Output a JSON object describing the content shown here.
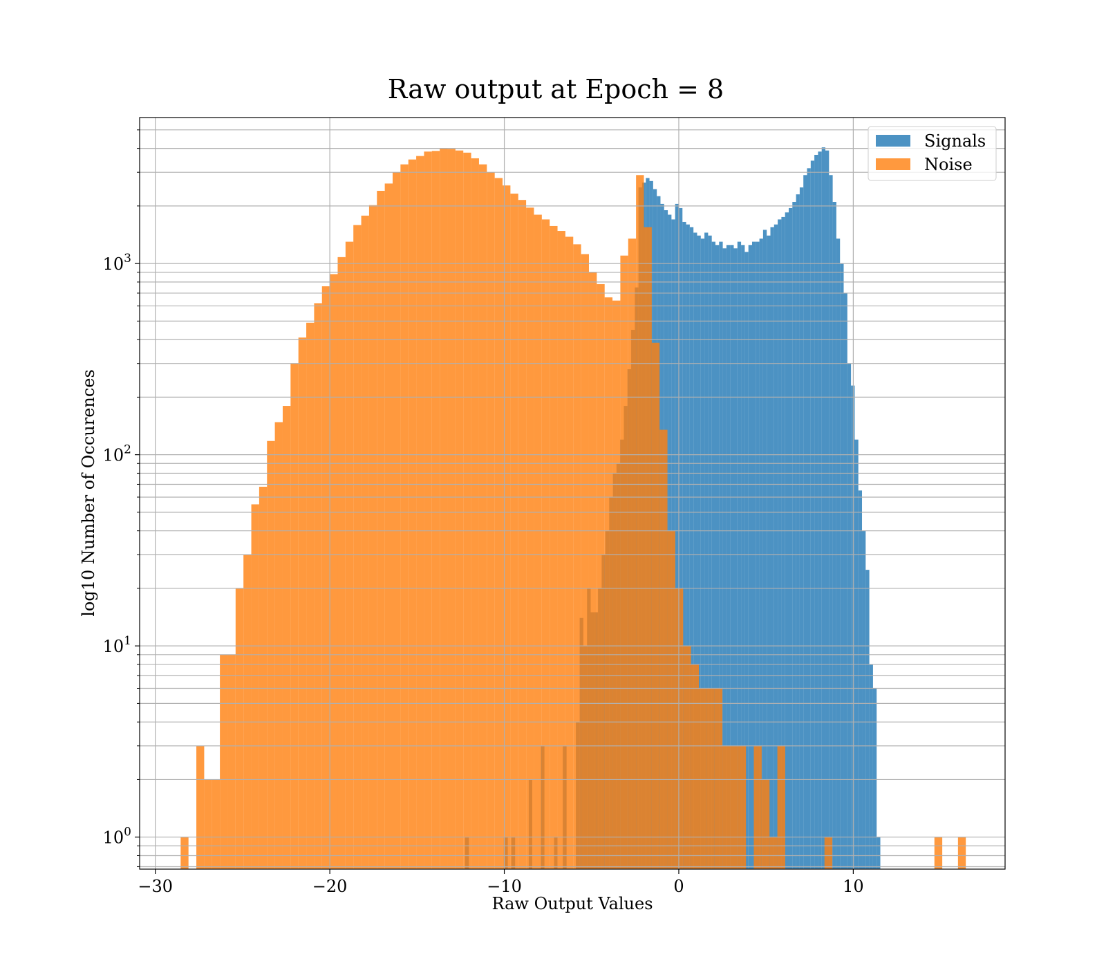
{
  "chart_data": {
    "type": "histogram",
    "title": "Raw output at Epoch = 8",
    "xlabel": "Raw Output Values",
    "ylabel": "log10 Number of Occurences",
    "yscale": "log",
    "xlim": [
      -30.9,
      18.7
    ],
    "ylim": [
      0.68,
      5800
    ],
    "xticks": [
      {
        "value": -30,
        "label": "−30"
      },
      {
        "value": -20,
        "label": "−20"
      },
      {
        "value": -10,
        "label": "−10"
      },
      {
        "value": 0,
        "label": "0"
      },
      {
        "value": 10,
        "label": "10"
      }
    ],
    "yticks": [
      {
        "value": 1,
        "base": "10",
        "exp": "0"
      },
      {
        "value": 10,
        "base": "10",
        "exp": "1"
      },
      {
        "value": 100,
        "base": "10",
        "exp": "2"
      },
      {
        "value": 1000,
        "base": "10",
        "exp": "3"
      }
    ],
    "grid": true,
    "legend": "top-right",
    "series": [
      {
        "name": "Signals",
        "color": "#1f77b4",
        "alpha": 0.8,
        "bins": [
          [
            -12.25,
            -12.03,
            1
          ],
          [
            -10.03,
            -9.8,
            1
          ],
          [
            -9.6,
            -9.38,
            1
          ],
          [
            -8.6,
            -8.4,
            2
          ],
          [
            -7.9,
            -7.7,
            3
          ],
          [
            -7.15,
            -6.95,
            1
          ],
          [
            -6.65,
            -6.43,
            3
          ],
          [
            -5.9,
            -5.68,
            4
          ],
          [
            -5.68,
            -5.47,
            14
          ],
          [
            -5.47,
            -5.26,
            10
          ],
          [
            -5.26,
            -5.05,
            20
          ],
          [
            -5.05,
            -4.84,
            15
          ],
          [
            -4.84,
            -4.63,
            15
          ],
          [
            -4.63,
            -4.42,
            20
          ],
          [
            -4.42,
            -4.21,
            30
          ],
          [
            -4.21,
            -3.99,
            40
          ],
          [
            -3.99,
            -3.78,
            60
          ],
          [
            -3.78,
            -3.57,
            80
          ],
          [
            -3.57,
            -3.36,
            90
          ],
          [
            -3.36,
            -3.15,
            120
          ],
          [
            -3.15,
            -2.94,
            180
          ],
          [
            -2.94,
            -2.73,
            280
          ],
          [
            -2.73,
            -2.52,
            450
          ],
          [
            -2.52,
            -2.31,
            750
          ],
          [
            -2.31,
            -2.1,
            2500
          ],
          [
            -2.1,
            -1.89,
            2650
          ],
          [
            -1.89,
            -1.68,
            2800
          ],
          [
            -1.68,
            -1.47,
            2700
          ],
          [
            -1.47,
            -1.26,
            2450
          ],
          [
            -1.26,
            -1.05,
            2250
          ],
          [
            -1.05,
            -0.84,
            2050
          ],
          [
            -0.84,
            -0.63,
            1900
          ],
          [
            -0.63,
            -0.42,
            1800
          ],
          [
            -0.42,
            -0.21,
            1700
          ],
          [
            -0.21,
            0.0,
            2050
          ],
          [
            0.0,
            0.21,
            1950
          ],
          [
            0.21,
            0.42,
            1650
          ],
          [
            0.42,
            0.63,
            1600
          ],
          [
            0.63,
            0.84,
            1550
          ],
          [
            0.84,
            1.05,
            1450
          ],
          [
            1.05,
            1.26,
            1400
          ],
          [
            1.26,
            1.47,
            1350
          ],
          [
            1.47,
            1.68,
            1450
          ],
          [
            1.68,
            1.89,
            1400
          ],
          [
            1.89,
            2.1,
            1300
          ],
          [
            2.1,
            2.31,
            1250
          ],
          [
            2.31,
            2.52,
            1300
          ],
          [
            2.52,
            2.73,
            1200
          ],
          [
            2.73,
            2.94,
            1250
          ],
          [
            2.94,
            3.15,
            1250
          ],
          [
            3.15,
            3.36,
            1200
          ],
          [
            3.36,
            3.57,
            1300
          ],
          [
            3.57,
            3.78,
            1250
          ],
          [
            3.78,
            3.99,
            1150
          ],
          [
            3.99,
            4.2,
            1250
          ],
          [
            4.2,
            4.41,
            1300
          ],
          [
            4.41,
            4.62,
            1300
          ],
          [
            4.62,
            4.83,
            1350
          ],
          [
            4.83,
            5.04,
            1500
          ],
          [
            5.04,
            5.25,
            1400
          ],
          [
            5.25,
            5.46,
            1550
          ],
          [
            5.46,
            5.67,
            1600
          ],
          [
            5.67,
            5.88,
            1700
          ],
          [
            5.88,
            6.09,
            1750
          ],
          [
            6.09,
            6.3,
            1850
          ],
          [
            6.3,
            6.51,
            1950
          ],
          [
            6.51,
            6.72,
            2100
          ],
          [
            6.72,
            6.93,
            2300
          ],
          [
            6.93,
            7.14,
            2500
          ],
          [
            7.14,
            7.35,
            2900
          ],
          [
            7.35,
            7.56,
            3150
          ],
          [
            7.56,
            7.77,
            3450
          ],
          [
            7.77,
            7.98,
            3700
          ],
          [
            7.98,
            8.19,
            3850
          ],
          [
            8.19,
            8.4,
            4050
          ],
          [
            8.4,
            8.61,
            3900
          ],
          [
            8.61,
            8.82,
            2900
          ],
          [
            8.82,
            9.03,
            2100
          ],
          [
            9.03,
            9.24,
            1350
          ],
          [
            9.24,
            9.45,
            1000
          ],
          [
            9.45,
            9.66,
            700
          ],
          [
            9.66,
            9.87,
            300
          ],
          [
            9.87,
            10.08,
            230
          ],
          [
            10.08,
            10.29,
            120
          ],
          [
            10.29,
            10.5,
            65
          ],
          [
            10.5,
            10.71,
            40
          ],
          [
            10.71,
            10.92,
            25
          ],
          [
            10.92,
            11.13,
            8
          ],
          [
            11.13,
            11.34,
            6
          ],
          [
            11.34,
            11.55,
            1
          ]
        ]
      },
      {
        "name": "Noise",
        "color": "#ff7f0e",
        "alpha": 0.8,
        "bins": [
          [
            -28.55,
            -28.1,
            1
          ],
          [
            -27.65,
            -27.2,
            3
          ],
          [
            -27.2,
            -26.75,
            2
          ],
          [
            -26.75,
            -26.3,
            2
          ],
          [
            -26.3,
            -25.85,
            9
          ],
          [
            -25.85,
            -25.4,
            9
          ],
          [
            -25.4,
            -24.95,
            20
          ],
          [
            -24.95,
            -24.5,
            30
          ],
          [
            -24.5,
            -24.05,
            55
          ],
          [
            -24.05,
            -23.6,
            68
          ],
          [
            -23.6,
            -23.15,
            118
          ],
          [
            -23.15,
            -22.7,
            148
          ],
          [
            -22.7,
            -22.25,
            180
          ],
          [
            -22.25,
            -21.8,
            300
          ],
          [
            -21.8,
            -21.35,
            410
          ],
          [
            -21.35,
            -20.9,
            490
          ],
          [
            -20.9,
            -20.45,
            620
          ],
          [
            -20.45,
            -20.0,
            760
          ],
          [
            -20.0,
            -19.55,
            880
          ],
          [
            -19.55,
            -19.1,
            1080
          ],
          [
            -19.1,
            -18.65,
            1300
          ],
          [
            -18.65,
            -18.2,
            1590
          ],
          [
            -18.2,
            -17.75,
            1780
          ],
          [
            -17.75,
            -17.3,
            2020
          ],
          [
            -17.3,
            -16.85,
            2400
          ],
          [
            -16.85,
            -16.4,
            2620
          ],
          [
            -16.4,
            -15.95,
            3000
          ],
          [
            -15.95,
            -15.5,
            3300
          ],
          [
            -15.5,
            -15.05,
            3500
          ],
          [
            -15.05,
            -14.6,
            3650
          ],
          [
            -14.6,
            -14.15,
            3850
          ],
          [
            -14.15,
            -13.7,
            3880
          ],
          [
            -13.7,
            -13.25,
            4000
          ],
          [
            -13.25,
            -12.8,
            3980
          ],
          [
            -12.8,
            -12.35,
            3900
          ],
          [
            -12.35,
            -11.9,
            3800
          ],
          [
            -11.9,
            -11.45,
            3550
          ],
          [
            -11.45,
            -11.0,
            3300
          ],
          [
            -11.0,
            -10.55,
            3000
          ],
          [
            -10.55,
            -10.1,
            2800
          ],
          [
            -10.1,
            -9.65,
            2560
          ],
          [
            -9.65,
            -9.2,
            2320
          ],
          [
            -9.2,
            -8.75,
            2150
          ],
          [
            -8.75,
            -8.3,
            1960
          ],
          [
            -8.3,
            -7.85,
            1800
          ],
          [
            -7.85,
            -7.4,
            1700
          ],
          [
            -7.4,
            -6.95,
            1570
          ],
          [
            -6.95,
            -6.5,
            1480
          ],
          [
            -6.5,
            -6.05,
            1380
          ],
          [
            -6.05,
            -5.6,
            1260
          ],
          [
            -5.6,
            -5.15,
            1120
          ],
          [
            -5.15,
            -4.7,
            900
          ],
          [
            -4.7,
            -4.25,
            780
          ],
          [
            -4.25,
            -3.8,
            665
          ],
          [
            -3.8,
            -3.35,
            640
          ],
          [
            -3.35,
            -2.9,
            1100
          ],
          [
            -2.9,
            -2.45,
            1350
          ],
          [
            -2.45,
            -2.0,
            2900
          ],
          [
            -2.0,
            -1.55,
            1550
          ],
          [
            -1.55,
            -1.1,
            385
          ],
          [
            -1.1,
            -0.65,
            135
          ],
          [
            -0.65,
            -0.2,
            40
          ],
          [
            -0.2,
            0.25,
            20
          ],
          [
            0.25,
            0.7,
            10
          ],
          [
            0.7,
            1.15,
            8
          ],
          [
            1.15,
            1.6,
            6
          ],
          [
            1.6,
            2.05,
            6
          ],
          [
            2.05,
            2.5,
            6
          ],
          [
            2.5,
            2.95,
            3
          ],
          [
            2.95,
            3.4,
            3
          ],
          [
            3.4,
            3.85,
            3
          ],
          [
            4.3,
            4.75,
            3
          ],
          [
            4.75,
            5.2,
            2
          ],
          [
            5.2,
            5.65,
            1
          ],
          [
            5.65,
            6.1,
            3
          ],
          [
            8.35,
            8.8,
            1
          ],
          [
            14.65,
            15.1,
            1
          ],
          [
            16.0,
            16.45,
            1
          ]
        ]
      }
    ]
  }
}
